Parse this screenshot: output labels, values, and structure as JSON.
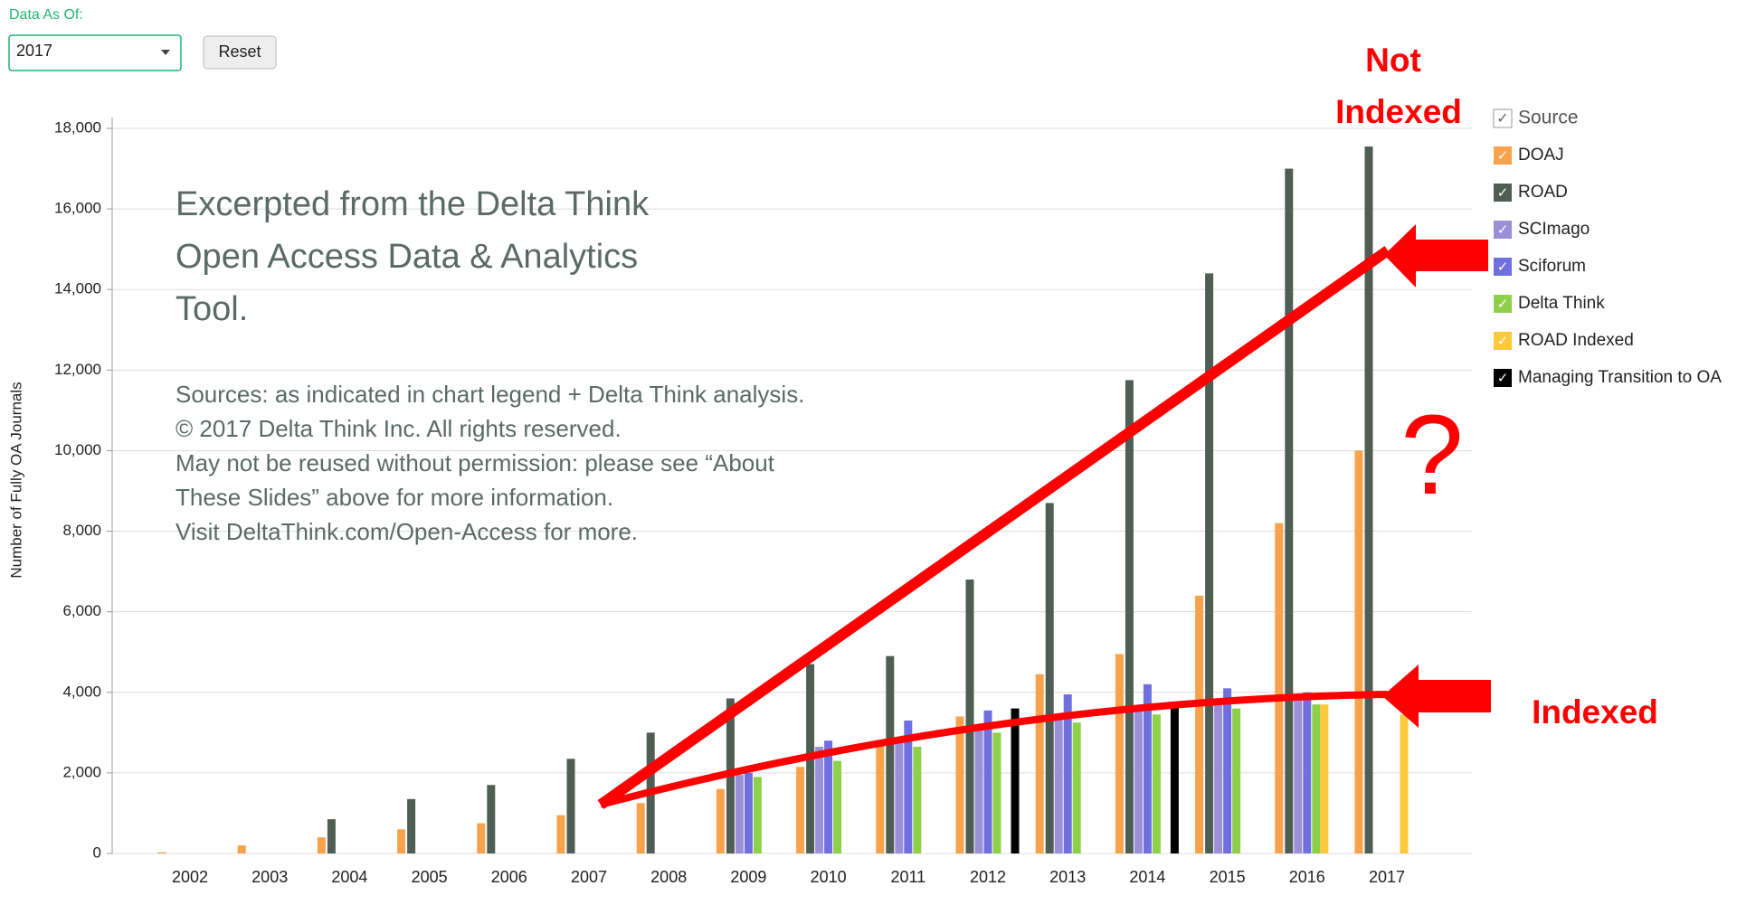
{
  "controls": {
    "label": "Data As Of:",
    "select": "2017",
    "reset": "Reset"
  },
  "chart_data": {
    "type": "bar",
    "ylabel": "Number of Fully OA Journals",
    "categories": [
      "2002",
      "2003",
      "2004",
      "2005",
      "2006",
      "2007",
      "2008",
      "2009",
      "2010",
      "2011",
      "2012",
      "2013",
      "2014",
      "2015",
      "2016",
      "2017"
    ],
    "ylim": [
      0,
      18000
    ],
    "yticks": [
      0,
      {
        "value": 2000,
        "label": "2,000"
      },
      {
        "value": 4000,
        "label": "4,000"
      },
      {
        "value": 6000,
        "label": "6,000"
      },
      {
        "value": 8000,
        "label": "8,000"
      },
      {
        "value": 10000,
        "label": "10,000"
      },
      {
        "value": 12000,
        "label": "12,000"
      },
      {
        "value": 14000,
        "label": "14,000"
      },
      {
        "value": 16000,
        "label": "16,000"
      },
      {
        "value": 18000,
        "label": "18,000"
      }
    ],
    "grid": true,
    "legend_title": "Source",
    "series": [
      {
        "name": "DOAJ",
        "color": "#f8a24b",
        "values": [
          30,
          200,
          400,
          600,
          750,
          950,
          1250,
          1600,
          2150,
          2700,
          3400,
          4450,
          4950,
          6400,
          8200,
          10000
        ]
      },
      {
        "name": "ROAD",
        "color": "#4f5e55",
        "values": [
          null,
          null,
          850,
          1350,
          1700,
          2350,
          3000,
          3850,
          4700,
          4900,
          6800,
          8700,
          11750,
          14400,
          17000,
          17550
        ]
      },
      {
        "name": "SCImago",
        "color": "#9b8fd8",
        "values": [
          null,
          null,
          null,
          null,
          null,
          null,
          null,
          1950,
          2650,
          2850,
          3150,
          3400,
          3550,
          3800,
          3900,
          null
        ]
      },
      {
        "name": "Sciforum",
        "color": "#6f6fe0",
        "values": [
          null,
          null,
          null,
          null,
          null,
          null,
          null,
          2000,
          2800,
          3300,
          3550,
          3950,
          4200,
          4100,
          4000,
          null
        ]
      },
      {
        "name": "Delta Think",
        "color": "#8ed04a",
        "values": [
          null,
          null,
          null,
          null,
          null,
          null,
          null,
          1900,
          2300,
          2650,
          3000,
          3250,
          3450,
          3600,
          3700,
          null
        ]
      },
      {
        "name": "ROAD Indexed",
        "color": "#fdc93c",
        "values": [
          null,
          null,
          null,
          null,
          null,
          null,
          null,
          null,
          null,
          null,
          null,
          null,
          null,
          null,
          3700,
          3450
        ]
      },
      {
        "name": "Managing Transition to OA",
        "color": "#000000",
        "values": [
          null,
          null,
          null,
          null,
          null,
          null,
          null,
          null,
          null,
          null,
          3600,
          null,
          3650,
          null,
          null,
          null
        ]
      }
    ],
    "watermark_title": [
      "Excerpted from the Delta Think",
      "Open Access Data & Analytics",
      "Tool."
    ],
    "watermark_notes": [
      "Sources: as indicated in chart legend + Delta Think analysis.",
      "© 2017 Delta Think Inc. All rights reserved.",
      "May not be reused without permission: please see “About",
      "These Slides” above for more information.",
      "Visit DeltaThink.com/Open-Access for more."
    ],
    "annotations": [
      "Not",
      "Indexed",
      "?",
      "Indexed"
    ]
  }
}
